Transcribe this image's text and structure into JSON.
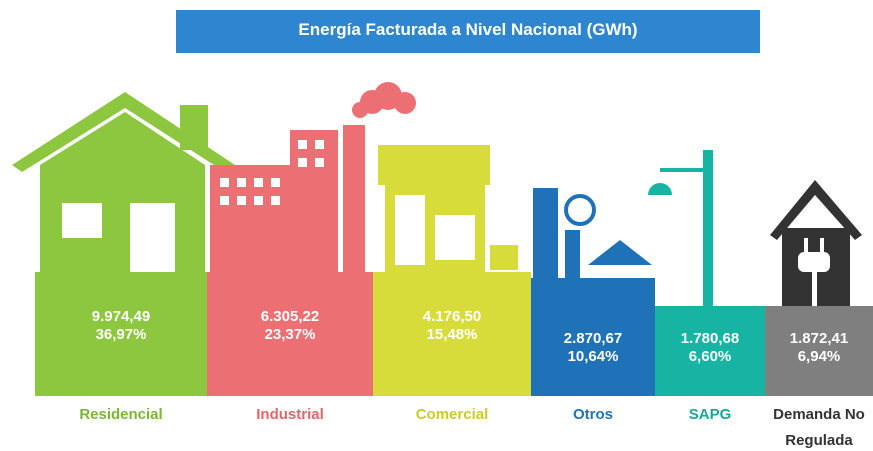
{
  "chart_data": {
    "type": "blocks",
    "title": "Energía Facturada a Nivel Nacional  (GWh)",
    "categories": [
      "Residencial",
      "Industrial",
      "Comercial",
      "Otros",
      "SAPG",
      "Demanda No Regulada"
    ],
    "values": [
      9974.49,
      6305.22,
      4176.5,
      2870.67,
      1780.68,
      1872.41
    ],
    "value_labels": [
      "9.974,49",
      "6.305,22",
      "4.176,50",
      "2.870,67",
      "1.780,68",
      "1.872,41"
    ],
    "shares": [
      36.97,
      23.37,
      15.48,
      10.64,
      6.6,
      6.94
    ],
    "share_labels": [
      "36,97%",
      "23,37%",
      "15,48%",
      "10,64%",
      "6,60%",
      "6,94%"
    ],
    "colors": [
      "#8dc63f",
      "#ec6f73",
      "#d8dc3a",
      "#1f72b8",
      "#17b4a4",
      "#7f7f7f"
    ],
    "label_colors": [
      "#7bb735",
      "#e4666b",
      "#c9cd2a",
      "#1f72b8",
      "#17a898",
      "#333333"
    ]
  }
}
